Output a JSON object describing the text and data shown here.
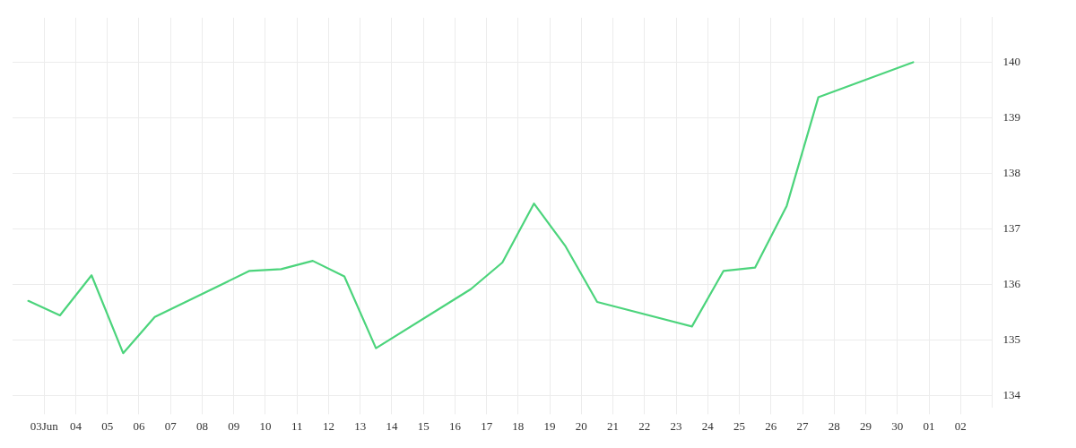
{
  "chart_data": {
    "type": "line",
    "x": [
      "--06-02T12:00",
      "--06-03T12:00",
      "--06-04T12:00",
      "--06-05T12:00",
      "--06-06T12:00",
      "--06-09T12:00",
      "--06-10T12:00",
      "--06-11T12:00",
      "--06-12T12:00",
      "--06-13T12:00",
      "--06-16T12:00",
      "--06-17T12:00",
      "--06-18T12:00",
      "--06-19T12:00",
      "--06-20T12:00",
      "--06-23T12:00",
      "--06-24T12:00",
      "--06-25T12:00",
      "--06-26T12:00",
      "--06-27T12:00",
      "--06-30T12:00"
    ],
    "series": [
      {
        "color": "#4cd47c",
        "values": [
          135.71,
          135.45,
          136.17,
          134.77,
          135.42,
          136.25,
          136.28,
          136.43,
          136.15,
          134.86,
          135.92,
          136.4,
          137.46,
          136.69,
          135.69,
          135.25,
          136.25,
          136.31,
          137.42,
          139.37,
          140.0
        ]
      }
    ],
    "xlim": [
      "--06-02",
      "--07-03"
    ],
    "xticks": [
      {
        "value": "--06-03",
        "label": "03Jun"
      },
      {
        "value": "--06-04",
        "label": "04"
      },
      {
        "value": "--06-05",
        "label": "05"
      },
      {
        "value": "--06-06",
        "label": "06"
      },
      {
        "value": "--06-07",
        "label": "07"
      },
      {
        "value": "--06-08",
        "label": "08"
      },
      {
        "value": "--06-09",
        "label": "09"
      },
      {
        "value": "--06-10",
        "label": "10"
      },
      {
        "value": "--06-11",
        "label": "11"
      },
      {
        "value": "--06-12",
        "label": "12"
      },
      {
        "value": "--06-13",
        "label": "13"
      },
      {
        "value": "--06-14",
        "label": "14"
      },
      {
        "value": "--06-15",
        "label": "15"
      },
      {
        "value": "--06-16",
        "label": "16"
      },
      {
        "value": "--06-17",
        "label": "17"
      },
      {
        "value": "--06-18",
        "label": "18"
      },
      {
        "value": "--06-19",
        "label": "19"
      },
      {
        "value": "--06-20",
        "label": "20"
      },
      {
        "value": "--06-21",
        "label": "21"
      },
      {
        "value": "--06-22",
        "label": "22"
      },
      {
        "value": "--06-23",
        "label": "23"
      },
      {
        "value": "--06-24",
        "label": "24"
      },
      {
        "value": "--06-25",
        "label": "25"
      },
      {
        "value": "--06-26",
        "label": "26"
      },
      {
        "value": "--06-27",
        "label": "27"
      },
      {
        "value": "--06-28",
        "label": "28"
      },
      {
        "value": "--06-29",
        "label": "29"
      },
      {
        "value": "--06-30",
        "label": "30"
      },
      {
        "value": "--07-01",
        "label": "01"
      },
      {
        "value": "--07-02",
        "label": "02"
      }
    ],
    "ylim": [
      133.8,
      140.8
    ],
    "yticks": [
      134,
      135,
      136,
      137,
      138,
      139,
      140
    ],
    "grid": true,
    "legend": false,
    "marker": "none",
    "line_style": "solid"
  }
}
